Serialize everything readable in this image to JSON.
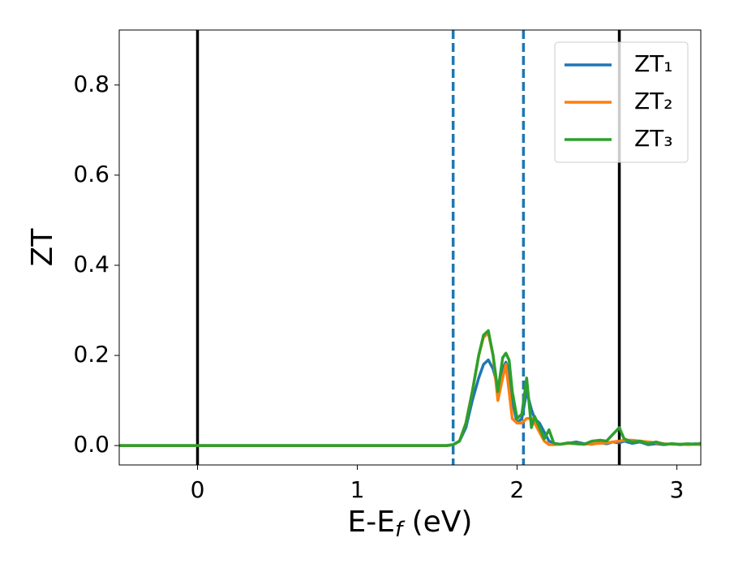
{
  "chart_data": {
    "type": "line",
    "ylabel": "ZT",
    "xlabel": "E-Ef (eV)",
    "x": [
      -0.49,
      0,
      0.5,
      1,
      1.5,
      1.56,
      1.6,
      1.64,
      1.68,
      1.72,
      1.76,
      1.79,
      1.82,
      1.85,
      1.88,
      1.91,
      1.93,
      1.95,
      1.97,
      2.0,
      2.03,
      2.06,
      2.09,
      2.11,
      2.14,
      2.17,
      2.2,
      2.23,
      2.27,
      2.32,
      2.37,
      2.42,
      2.47,
      2.52,
      2.56,
      2.6,
      2.64,
      2.67,
      2.72,
      2.77,
      2.82,
      2.87,
      2.92,
      2.97,
      3.02,
      3.07,
      3.12,
      3.15
    ],
    "series": [
      {
        "name": "ZT₁",
        "color": "#1f77b4",
        "values": [
          0,
          0,
          0,
          0,
          0,
          0,
          0.002,
          0.01,
          0.04,
          0.1,
          0.15,
          0.18,
          0.19,
          0.17,
          0.13,
          0.17,
          0.185,
          0.16,
          0.1,
          0.05,
          0.06,
          0.12,
          0.08,
          0.06,
          0.05,
          0.03,
          0.01,
          0.005,
          0.003,
          0.005,
          0.008,
          0.004,
          0.003,
          0.006,
          0.004,
          0.008,
          0.006,
          0.01,
          0.005,
          0.008,
          0.002,
          0.004,
          0.002,
          0.004,
          0.002,
          0.003,
          0.004,
          0.002
        ]
      },
      {
        "name": "ZT₂",
        "color": "#ff7f0e",
        "values": [
          0,
          0,
          0,
          0,
          0,
          0,
          0.002,
          0.01,
          0.05,
          0.12,
          0.2,
          0.24,
          0.25,
          0.2,
          0.1,
          0.15,
          0.18,
          0.12,
          0.06,
          0.05,
          0.05,
          0.06,
          0.06,
          0.05,
          0.03,
          0.01,
          0.002,
          0.002,
          0.003,
          0.005,
          0.004,
          0.003,
          0.004,
          0.005,
          0.006,
          0.008,
          0.01,
          0.012,
          0.012,
          0.01,
          0.008,
          0.006,
          0.004,
          0.003,
          0.003,
          0.002,
          0.003,
          0.002
        ]
      },
      {
        "name": "ZT₃",
        "color": "#2ca02c",
        "values": [
          0,
          0,
          0,
          0,
          0,
          0,
          0.002,
          0.01,
          0.05,
          0.12,
          0.2,
          0.245,
          0.255,
          0.2,
          0.12,
          0.195,
          0.205,
          0.19,
          0.12,
          0.06,
          0.07,
          0.15,
          0.04,
          0.065,
          0.04,
          0.015,
          0.035,
          0.005,
          0.003,
          0.006,
          0.004,
          0.003,
          0.01,
          0.012,
          0.01,
          0.025,
          0.04,
          0.015,
          0.008,
          0.01,
          0.004,
          0.008,
          0.003,
          0.004,
          0.003,
          0.004,
          0.003,
          0.005
        ]
      }
    ],
    "vlines": [
      {
        "x": 0,
        "color": "#000000",
        "style": "solid"
      },
      {
        "x": 1.6,
        "color": "#1f77b4",
        "style": "dashed"
      },
      {
        "x": 2.04,
        "color": "#1f77b4",
        "style": "dashed"
      },
      {
        "x": 2.64,
        "color": "#000000",
        "style": "solid"
      }
    ],
    "xlim": [
      -0.49,
      3.15
    ],
    "ylim": [
      -0.043,
      0.922
    ],
    "xticks": [
      0,
      1,
      2,
      3
    ],
    "yticks": [
      {
        "value": 0,
        "label": "0.0"
      },
      0.2,
      0.4,
      0.6,
      0.8
    ],
    "legend": "upper right",
    "grid": false
  }
}
